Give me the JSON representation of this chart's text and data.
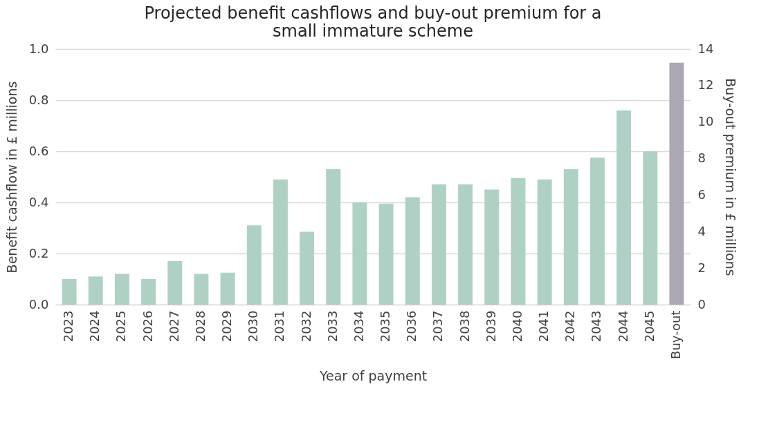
{
  "chart_data": {
    "type": "bar",
    "title": "Projected benefit cashflows and buy-out premium for a small immature scheme",
    "xlabel": "Year of payment",
    "ylabel": "Benefit cashflow in £ millions",
    "y2label": "Buy-out premium in £ millions",
    "categories": [
      "2023",
      "2024",
      "2025",
      "2026",
      "2027",
      "2028",
      "2029",
      "2030",
      "2031",
      "2032",
      "2033",
      "2034",
      "2035",
      "2036",
      "2037",
      "2038",
      "2039",
      "2040",
      "2041",
      "2042",
      "2043",
      "2044",
      "2045",
      "Buy-out"
    ],
    "series": [
      {
        "color": "#afd1c4",
        "values": [
          0.1,
          0.11,
          0.12,
          0.1,
          0.17,
          0.12,
          0.125,
          0.31,
          0.49,
          0.285,
          0.53,
          0.4,
          0.395,
          0.42,
          0.47,
          0.47,
          0.45,
          0.495,
          0.49,
          0.53,
          0.575,
          0.76,
          0.6,
          null
        ]
      },
      {
        "color": "#aca7b0",
        "axis": "y2",
        "values": [
          null,
          null,
          null,
          null,
          null,
          null,
          null,
          null,
          null,
          null,
          null,
          null,
          null,
          null,
          null,
          null,
          null,
          null,
          null,
          null,
          null,
          null,
          null,
          13.25
        ]
      }
    ],
    "ylim": [
      0,
      1
    ],
    "yticks": [
      {
        "value": 0,
        "label": "0.0"
      },
      0.2,
      0.4,
      0.6,
      0.8,
      {
        "value": 1,
        "label": "1.0"
      }
    ],
    "y2lim": [
      0,
      14
    ],
    "y2ticks": [
      0,
      2,
      4,
      6,
      8,
      10,
      12,
      14
    ],
    "grid": "y"
  }
}
